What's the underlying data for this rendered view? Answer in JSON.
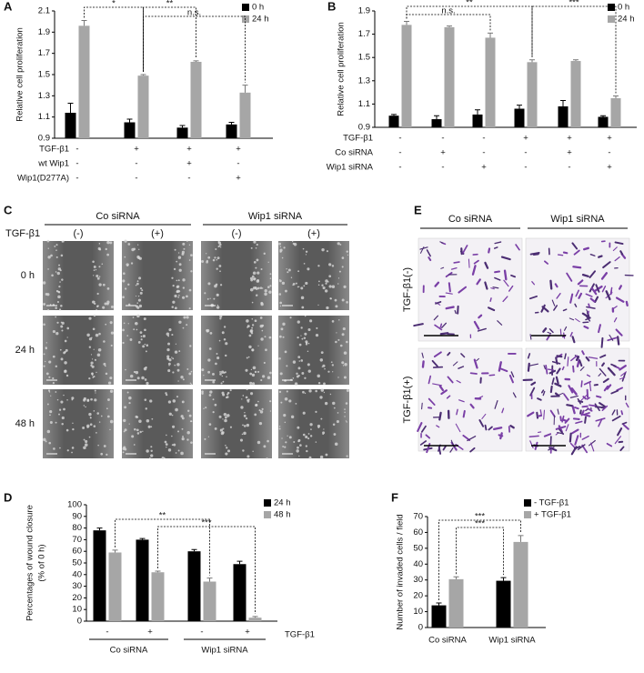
{
  "chart_data": [
    {
      "type": "bar",
      "panel": "A",
      "ylabel": "Relative cell proliferation",
      "ylim": [
        0.9,
        2.1
      ],
      "yticks": [
        0.9,
        1.1,
        1.3,
        1.5,
        1.7,
        1.9,
        2.1
      ],
      "series": [
        {
          "name": "0 h",
          "color": "#000000",
          "values": [
            1.14,
            1.05,
            1.0,
            1.03
          ],
          "errors": [
            0.09,
            0.03,
            0.02,
            0.02
          ]
        },
        {
          "name": "24 h",
          "color": "#a6a6a6",
          "values": [
            1.96,
            1.49,
            1.62,
            1.33
          ],
          "errors": [
            0.05,
            0.01,
            0.01,
            0.07
          ]
        }
      ],
      "conditions": [
        {
          "name": "TGF-β1",
          "values": [
            "-",
            "+",
            "+",
            "+"
          ]
        },
        {
          "name": "wt Wip1",
          "values": [
            "-",
            "-",
            "+",
            "-"
          ]
        },
        {
          "name": "Wip1(D277A)",
          "values": [
            "-",
            "-",
            "-",
            "+"
          ]
        }
      ],
      "annotations": [
        "*",
        "**",
        "n.s."
      ]
    },
    {
      "type": "bar",
      "panel": "B",
      "ylabel": "Relative cell proliferation",
      "ylim": [
        0.9,
        1.9
      ],
      "yticks": [
        0.9,
        1.1,
        1.3,
        1.5,
        1.7,
        1.9
      ],
      "series": [
        {
          "name": "0 h",
          "color": "#000000",
          "values": [
            1.0,
            0.97,
            1.01,
            1.06,
            1.08,
            0.99
          ],
          "errors": [
            0.01,
            0.03,
            0.04,
            0.03,
            0.05,
            0.01
          ]
        },
        {
          "name": "24 h",
          "color": "#a6a6a6",
          "values": [
            1.78,
            1.76,
            1.67,
            1.46,
            1.47,
            1.15
          ],
          "errors": [
            0.03,
            0.01,
            0.04,
            0.02,
            0.01,
            0.02
          ]
        }
      ],
      "conditions": [
        {
          "name": "TGF-β1",
          "values": [
            "-",
            "-",
            "-",
            "+",
            "+",
            "+"
          ]
        },
        {
          "name": "Co siRNA",
          "values": [
            "-",
            "+",
            "-",
            "-",
            "+",
            "-"
          ]
        },
        {
          "name": "Wip1 siRNA",
          "values": [
            "-",
            "-",
            "+",
            "-",
            "-",
            "+"
          ]
        }
      ],
      "annotations": [
        "n.s.",
        "**",
        "***"
      ]
    },
    {
      "type": "bar",
      "panel": "D",
      "ylabel": [
        "Percentages of wound closure",
        "(% of 0 h)"
      ],
      "ylim": [
        0,
        100
      ],
      "yticks": [
        0,
        10,
        20,
        30,
        40,
        50,
        60,
        70,
        80,
        90,
        100
      ],
      "categories": [
        "-",
        "+",
        "-",
        "+"
      ],
      "groups": [
        "Co siRNA",
        "Wip1 siRNA"
      ],
      "condition_label": "TGF-β1",
      "series": [
        {
          "name": "24 h",
          "color": "#000000",
          "values": [
            78,
            70,
            60,
            49
          ],
          "errors": [
            2,
            1,
            1.5,
            2.5
          ]
        },
        {
          "name": "48 h",
          "color": "#a6a6a6",
          "values": [
            59,
            42,
            34,
            3
          ],
          "errors": [
            2,
            1,
            3,
            1
          ]
        }
      ],
      "annotations": [
        "**",
        "***"
      ]
    },
    {
      "type": "bar",
      "panel": "F",
      "ylabel": "Number of invaded cells / field",
      "ylim": [
        0,
        70
      ],
      "yticks": [
        0,
        10,
        20,
        30,
        40,
        50,
        60,
        70
      ],
      "categories": [
        "Co siRNA",
        "Wip1 siRNA"
      ],
      "series": [
        {
          "name": "- TGF-β1",
          "color": "#000000",
          "values": [
            14,
            29.5
          ],
          "errors": [
            1.5,
            2
          ]
        },
        {
          "name": "+ TGF-β1",
          "color": "#a6a6a6",
          "values": [
            30.5,
            54
          ],
          "errors": [
            1.5,
            4
          ]
        }
      ],
      "annotations": [
        "***",
        "***"
      ]
    }
  ],
  "panels": {
    "C": {
      "letter": "C",
      "headers": [
        "Co siRNA",
        "Wip1 siRNA"
      ],
      "condition": "TGF-β1",
      "columns": [
        "(-)",
        "(+)",
        "(-)",
        "(+)"
      ],
      "rows": [
        "0 h",
        "24 h",
        "48 h"
      ]
    },
    "E": {
      "letter": "E",
      "headers": [
        "Co siRNA",
        "Wip1 siRNA"
      ],
      "rows": [
        "TGF-β1(-)",
        "TGF-β1(+)"
      ]
    }
  }
}
